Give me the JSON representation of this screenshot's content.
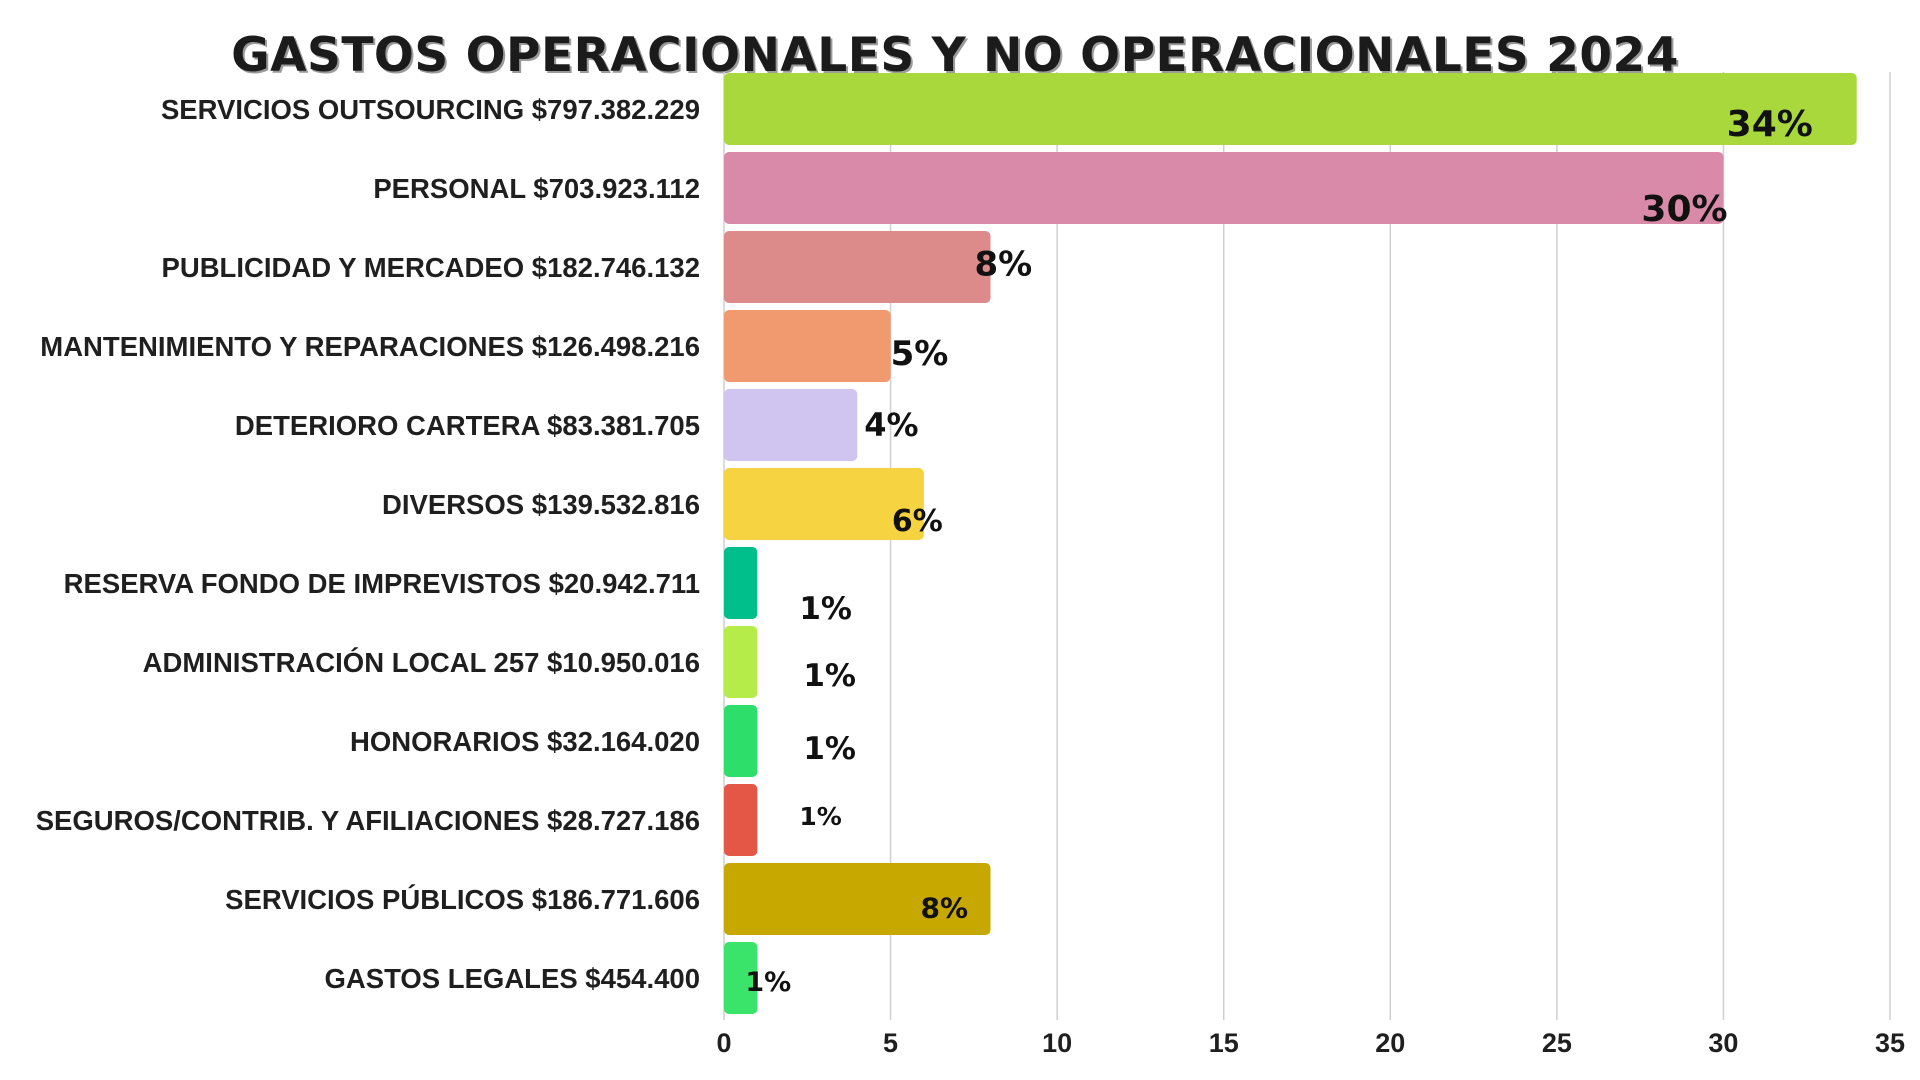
{
  "chart_data": {
    "type": "bar",
    "orientation": "horizontal",
    "title": "GASTOS OPERACIONALES Y NO OPERACIONALES 2024",
    "categories": [
      "SERVICIOS OUTSOURCING $797.382.229",
      "PERSONAL $703.923.112",
      "PUBLICIDAD Y MERCADEO $182.746.132",
      "MANTENIMIENTO Y REPARACIONES $126.498.216",
      "DETERIORO CARTERA $83.381.705",
      "DIVERSOS $139.532.816",
      "RESERVA FONDO DE IMPREVISTOS $20.942.711",
      "ADMINISTRACIÓN LOCAL 257 $10.950.016",
      "HONORARIOS $32.164.020",
      "SEGUROS/CONTRIB. Y AFILIACIONES $28.727.186",
      "SERVICIOS PÚBLICOS $186.771.606",
      "GASTOS LEGALES $454.400"
    ],
    "values": [
      34,
      30,
      8,
      5,
      4,
      6,
      1,
      1,
      1,
      1,
      8,
      1
    ],
    "data_labels": [
      "34%",
      "30%",
      "8%",
      "5%",
      "4%",
      "6%",
      "1%",
      "1%",
      "1%",
      "1%",
      "8%",
      "1%"
    ],
    "colors": [
      "#a8d83c",
      "#d98aa9",
      "#dd8a8a",
      "#f19a6f",
      "#d0c4f0",
      "#f5d341",
      "#00bf8a",
      "#b6ec4a",
      "#2ddf6a",
      "#e45646",
      "#c7a800",
      "#3ae36a"
    ],
    "xlim": [
      0,
      35
    ],
    "xticks": [
      "0",
      "5",
      "10",
      "15",
      "20",
      "25",
      "30",
      "35"
    ],
    "grid": true,
    "legend": "none"
  }
}
